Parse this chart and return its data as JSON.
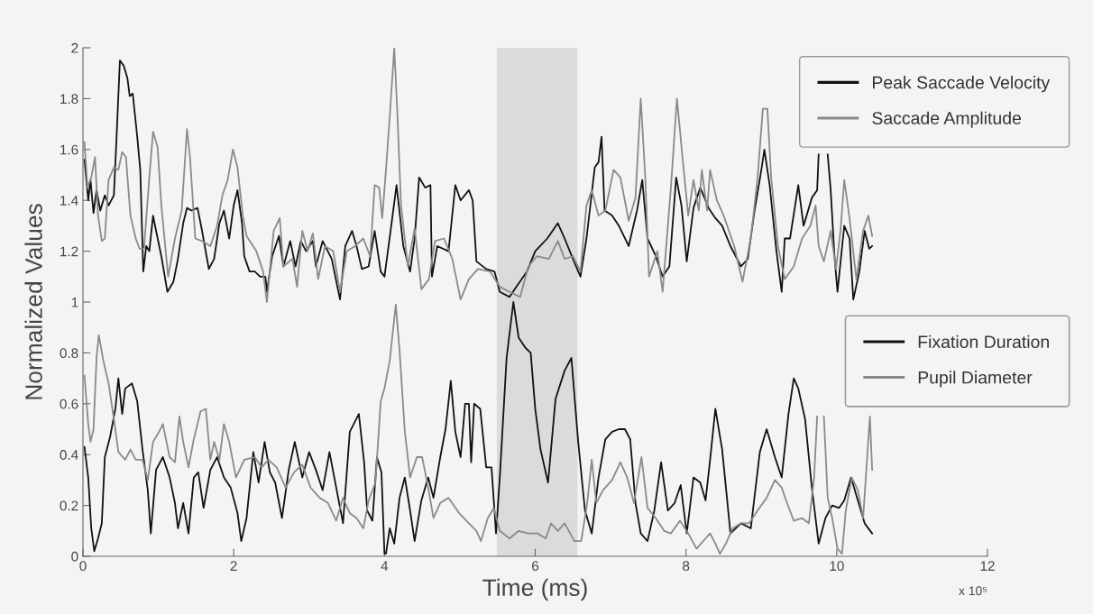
{
  "chart_data": {
    "type": "line",
    "xlabel": "Time (ms)",
    "ylabel": "Normalized Values",
    "annotations": [
      "x 10⁵"
    ],
    "xlim": [
      0,
      12
    ],
    "xticks": [
      0,
      2,
      4,
      6,
      8,
      10,
      12
    ],
    "ylim": [
      0,
      2
    ],
    "yticks": [
      0,
      0.2,
      0.4,
      0.6,
      0.8,
      1,
      1.2,
      1.4,
      1.6,
      1.8,
      2
    ],
    "grid": false,
    "legend": "top right",
    "line_style": "solid",
    "marker": "none",
    "bands": [
      {
        "axis": "x",
        "from": 5.49,
        "to": 6.56,
        "color": "#dadbdd"
      }
    ],
    "series": [
      {
        "name": "Peak Saccade Velocity",
        "color": "#111111",
        "x": [
          0.02,
          0.07,
          0.1,
          0.14,
          0.18,
          0.23,
          0.29,
          0.34,
          0.41,
          0.44,
          0.49,
          0.54,
          0.59,
          0.62,
          0.66,
          0.72,
          0.76,
          0.8,
          0.84,
          0.88,
          0.93,
          0.97,
          1.04,
          1.12,
          1.2,
          1.26,
          1.33,
          1.38,
          1.44,
          1.52,
          1.58,
          1.67,
          1.74,
          1.81,
          1.87,
          1.94,
          2.0,
          2.05,
          2.11,
          2.14,
          2.21,
          2.28,
          2.35,
          2.42,
          2.44,
          2.51,
          2.6,
          2.66,
          2.75,
          2.82,
          2.89,
          2.96,
          3.05,
          3.09,
          3.18,
          3.3,
          3.41,
          3.48,
          3.57,
          3.63,
          3.7,
          3.79,
          3.87,
          3.95,
          4.0,
          4.09,
          4.16,
          4.25,
          4.34,
          4.4,
          4.46,
          4.54,
          4.61,
          4.63,
          4.7,
          4.85,
          4.94,
          5.01,
          5.12,
          5.17,
          5.22,
          5.35,
          5.46,
          5.53,
          5.66,
          5.75,
          5.89,
          6.0,
          6.16,
          6.3,
          6.39,
          6.5,
          6.6,
          6.68,
          6.79,
          6.84,
          6.88,
          6.92,
          7.02,
          7.11,
          7.24,
          7.35,
          7.42,
          7.49,
          7.6,
          7.69,
          7.78,
          7.87,
          7.94,
          8.01,
          8.1,
          8.19,
          8.3,
          8.39,
          8.48,
          8.59,
          8.73,
          8.82,
          8.91,
          9.0,
          9.04,
          9.11,
          9.2,
          9.27,
          9.31,
          9.38,
          9.49,
          9.56,
          9.67,
          9.74,
          9.76,
          9.82,
          9.88,
          9.92,
          9.97,
          10.01,
          10.1,
          10.17,
          10.22,
          10.3,
          10.37,
          10.43,
          10.47
        ],
        "values": [
          1.56,
          1.4,
          1.48,
          1.35,
          1.44,
          1.36,
          1.42,
          1.38,
          1.42,
          1.61,
          1.95,
          1.93,
          1.88,
          1.81,
          1.82,
          1.65,
          1.52,
          1.12,
          1.22,
          1.2,
          1.34,
          1.28,
          1.18,
          1.04,
          1.08,
          1.17,
          1.31,
          1.37,
          1.36,
          1.37,
          1.28,
          1.13,
          1.17,
          1.31,
          1.36,
          1.25,
          1.38,
          1.44,
          1.31,
          1.18,
          1.12,
          1.12,
          1.1,
          1.1,
          1.04,
          1.18,
          1.26,
          1.14,
          1.24,
          1.14,
          1.24,
          1.2,
          1.24,
          1.14,
          1.24,
          1.17,
          1.01,
          1.22,
          1.28,
          1.22,
          1.13,
          1.14,
          1.28,
          1.12,
          1.1,
          1.3,
          1.46,
          1.22,
          1.12,
          1.25,
          1.49,
          1.45,
          1.46,
          1.1,
          1.22,
          1.2,
          1.46,
          1.4,
          1.44,
          1.4,
          1.16,
          1.13,
          1.12,
          1.04,
          1.02,
          1.06,
          1.12,
          1.2,
          1.25,
          1.31,
          1.25,
          1.17,
          1.1,
          1.25,
          1.53,
          1.55,
          1.65,
          1.36,
          1.34,
          1.3,
          1.22,
          1.36,
          1.48,
          1.25,
          1.18,
          1.1,
          1.14,
          1.49,
          1.38,
          1.16,
          1.37,
          1.45,
          1.37,
          1.33,
          1.3,
          1.22,
          1.14,
          1.17,
          1.36,
          1.52,
          1.6,
          1.46,
          1.2,
          1.04,
          1.25,
          1.25,
          1.46,
          1.3,
          1.41,
          1.44,
          1.58,
          null,
          1.58,
          1.44,
          1.18,
          1.04,
          1.3,
          1.25,
          1.01,
          1.12,
          1.28,
          1.21,
          1.22
        ]
      },
      {
        "name": "Saccade Amplitude",
        "color": "#8a8a8a",
        "x": [
          0.02,
          0.06,
          0.11,
          0.16,
          0.2,
          0.25,
          0.29,
          0.34,
          0.41,
          0.47,
          0.52,
          0.57,
          0.63,
          0.7,
          0.75,
          0.81,
          0.88,
          0.93,
          0.99,
          1.04,
          1.13,
          1.22,
          1.31,
          1.38,
          1.42,
          1.49,
          1.58,
          1.69,
          1.78,
          1.85,
          1.92,
          1.99,
          2.05,
          2.12,
          2.17,
          2.3,
          2.39,
          2.44,
          2.53,
          2.61,
          2.66,
          2.78,
          2.84,
          2.91,
          2.98,
          3.05,
          3.12,
          3.21,
          3.32,
          3.41,
          3.5,
          3.61,
          3.72,
          3.81,
          3.87,
          3.93,
          3.97,
          4.02,
          4.07,
          4.13,
          4.17,
          4.22,
          4.31,
          4.4,
          4.49,
          4.59,
          4.67,
          4.79,
          4.9,
          5.01,
          5.12,
          5.24,
          5.4,
          5.53,
          5.66,
          5.8,
          5.91,
          6.02,
          6.18,
          6.3,
          6.39,
          6.5,
          6.6,
          6.68,
          6.75,
          6.84,
          6.93,
          7.04,
          7.13,
          7.24,
          7.33,
          7.4,
          7.46,
          7.51,
          7.62,
          7.69,
          7.8,
          7.88,
          7.96,
          8.03,
          8.1,
          8.17,
          8.21,
          8.28,
          8.32,
          8.41,
          8.5,
          8.64,
          8.75,
          8.86,
          8.95,
          9.02,
          9.08,
          9.13,
          9.22,
          9.31,
          9.43,
          9.54,
          9.65,
          9.72,
          9.76,
          9.83,
          9.92,
          9.99,
          10.05,
          10.1,
          10.17,
          10.26,
          10.35,
          10.42,
          10.47
        ],
        "values": [
          1.63,
          1.45,
          1.49,
          1.57,
          1.34,
          1.24,
          1.25,
          1.48,
          1.53,
          1.52,
          1.59,
          1.57,
          1.34,
          1.25,
          1.21,
          1.21,
          1.49,
          1.67,
          1.61,
          1.38,
          1.1,
          1.25,
          1.36,
          1.68,
          1.57,
          1.25,
          1.24,
          1.22,
          1.3,
          1.42,
          1.48,
          1.6,
          1.53,
          1.34,
          1.26,
          1.2,
          1.12,
          1.0,
          1.28,
          1.33,
          1.14,
          1.17,
          1.06,
          1.28,
          1.2,
          1.27,
          1.09,
          1.22,
          1.2,
          1.04,
          1.2,
          1.22,
          1.25,
          1.18,
          1.46,
          1.45,
          1.33,
          1.52,
          1.73,
          2.0,
          1.75,
          1.38,
          1.14,
          1.29,
          1.05,
          1.09,
          1.24,
          1.25,
          1.17,
          1.01,
          1.09,
          1.13,
          1.12,
          1.06,
          1.04,
          1.02,
          1.14,
          1.18,
          1.17,
          1.24,
          1.17,
          1.18,
          1.12,
          1.38,
          1.44,
          1.34,
          1.36,
          1.52,
          1.49,
          1.32,
          1.41,
          1.8,
          1.49,
          1.1,
          1.2,
          1.04,
          1.45,
          1.8,
          1.55,
          1.34,
          1.48,
          1.36,
          1.52,
          1.36,
          1.52,
          1.4,
          1.34,
          1.22,
          1.08,
          1.25,
          1.49,
          1.76,
          1.76,
          1.49,
          1.22,
          1.09,
          1.14,
          1.25,
          1.3,
          1.38,
          1.22,
          1.16,
          1.28,
          1.13,
          1.28,
          1.48,
          1.33,
          1.09,
          1.28,
          1.34,
          1.26
        ]
      },
      {
        "name": "Fixation Duration",
        "color": "#111111",
        "x": [
          0.02,
          0.07,
          0.11,
          0.15,
          0.2,
          0.25,
          0.29,
          0.36,
          0.43,
          0.47,
          0.52,
          0.56,
          0.65,
          0.72,
          0.79,
          0.86,
          0.9,
          0.97,
          1.06,
          1.15,
          1.22,
          1.26,
          1.33,
          1.4,
          1.47,
          1.53,
          1.6,
          1.69,
          1.78,
          1.87,
          1.96,
          2.05,
          2.1,
          2.17,
          2.26,
          2.33,
          2.41,
          2.48,
          2.55,
          2.64,
          2.73,
          2.81,
          2.91,
          3.0,
          3.09,
          3.18,
          3.27,
          3.36,
          3.45,
          3.54,
          3.66,
          3.73,
          3.77,
          3.84,
          3.9,
          3.96,
          4.0,
          4.02,
          4.07,
          4.13,
          4.2,
          4.27,
          4.34,
          4.4,
          4.49,
          4.58,
          4.65,
          4.74,
          4.81,
          4.88,
          4.94,
          5.01,
          5.07,
          5.12,
          5.15,
          5.19,
          5.27,
          5.35,
          5.42,
          5.48,
          5.53,
          5.62,
          5.71,
          5.78,
          5.87,
          5.94,
          6.0,
          6.07,
          6.17,
          6.27,
          6.39,
          6.48,
          6.57,
          6.66,
          6.75,
          6.84,
          6.93,
          7.02,
          7.11,
          7.19,
          7.26,
          7.33,
          7.4,
          7.49,
          7.58,
          7.67,
          7.76,
          7.85,
          7.93,
          8.01,
          8.1,
          8.19,
          8.26,
          8.32,
          8.39,
          8.48,
          8.59,
          8.73,
          8.86,
          8.98,
          9.07,
          9.18,
          9.27,
          9.36,
          9.43,
          9.49,
          9.58,
          9.67,
          9.76,
          9.85,
          9.94,
          10.03,
          10.1,
          10.19,
          10.28,
          10.37,
          10.47
        ],
        "values": [
          0.43,
          0.31,
          0.11,
          0.02,
          0.07,
          0.13,
          0.39,
          0.47,
          0.58,
          0.7,
          0.56,
          0.66,
          0.68,
          0.61,
          0.42,
          0.26,
          0.09,
          0.34,
          0.39,
          0.31,
          0.21,
          0.11,
          0.21,
          0.09,
          0.31,
          0.33,
          0.19,
          0.34,
          0.39,
          0.31,
          0.27,
          0.17,
          0.06,
          0.15,
          0.41,
          0.29,
          0.45,
          0.33,
          0.29,
          0.15,
          0.34,
          0.45,
          0.31,
          0.41,
          0.34,
          0.26,
          0.41,
          0.27,
          0.13,
          0.49,
          0.56,
          0.37,
          0.18,
          0.14,
          0.39,
          0.33,
          0.01,
          0.01,
          0.11,
          0.05,
          0.23,
          0.31,
          0.18,
          0.06,
          0.22,
          0.31,
          0.23,
          0.39,
          0.5,
          0.69,
          0.49,
          0.39,
          0.6,
          0.6,
          0.37,
          0.6,
          0.58,
          0.35,
          0.35,
          0.09,
          0.31,
          0.78,
          1.0,
          0.86,
          0.82,
          0.8,
          0.58,
          0.42,
          0.29,
          0.62,
          0.73,
          0.78,
          0.45,
          0.18,
          0.09,
          0.31,
          0.46,
          0.49,
          0.5,
          0.5,
          0.46,
          0.21,
          0.09,
          0.06,
          0.18,
          0.37,
          0.18,
          0.21,
          0.28,
          0.09,
          0.31,
          0.29,
          0.22,
          0.38,
          0.58,
          0.42,
          0.09,
          0.13,
          0.11,
          0.41,
          0.5,
          0.39,
          0.31,
          0.56,
          0.7,
          0.66,
          0.54,
          0.27,
          0.05,
          0.15,
          0.2,
          0.19,
          0.22,
          0.31,
          0.22,
          0.13,
          0.09
        ]
      },
      {
        "name": "Pupil Diameter",
        "color": "#8a8a8a",
        "x": [
          0.02,
          0.07,
          0.1,
          0.14,
          0.18,
          0.21,
          0.27,
          0.34,
          0.41,
          0.47,
          0.56,
          0.63,
          0.7,
          0.79,
          0.86,
          0.93,
          1.01,
          1.06,
          1.15,
          1.22,
          1.28,
          1.33,
          1.4,
          1.47,
          1.56,
          1.63,
          1.69,
          1.74,
          1.81,
          1.87,
          1.94,
          2.03,
          2.14,
          2.28,
          2.37,
          2.46,
          2.57,
          2.69,
          2.8,
          2.91,
          3.02,
          3.14,
          3.25,
          3.36,
          3.45,
          3.54,
          3.63,
          3.72,
          3.79,
          3.88,
          3.95,
          4.0,
          4.07,
          4.15,
          4.2,
          4.27,
          4.34,
          4.43,
          4.5,
          4.58,
          4.65,
          4.74,
          4.85,
          4.99,
          5.12,
          5.22,
          5.28,
          5.37,
          5.45,
          5.53,
          5.66,
          5.78,
          5.91,
          6.03,
          6.14,
          6.21,
          6.3,
          6.39,
          6.52,
          6.61,
          6.69,
          6.75,
          6.81,
          6.9,
          7.02,
          7.13,
          7.22,
          7.31,
          7.41,
          7.49,
          7.6,
          7.71,
          7.8,
          7.92,
          8.03,
          8.14,
          8.26,
          8.32,
          8.39,
          8.45,
          8.53,
          8.62,
          8.73,
          8.84,
          8.95,
          9.07,
          9.18,
          9.27,
          9.34,
          9.43,
          9.54,
          9.63,
          9.7,
          9.74,
          9.79,
          9.83,
          9.88,
          9.94,
          10.01,
          10.07,
          10.12,
          10.2,
          10.28,
          10.35,
          10.44,
          10.47
        ],
        "values": [
          0.71,
          0.52,
          0.45,
          0.5,
          0.78,
          0.87,
          0.77,
          0.68,
          0.54,
          0.41,
          0.38,
          0.42,
          0.38,
          0.38,
          0.3,
          0.45,
          0.49,
          0.52,
          0.39,
          0.37,
          0.55,
          0.45,
          0.35,
          0.46,
          0.57,
          0.58,
          0.38,
          0.45,
          0.38,
          0.52,
          0.45,
          0.31,
          0.38,
          0.39,
          0.35,
          0.38,
          0.35,
          0.27,
          0.33,
          0.36,
          0.27,
          0.23,
          0.21,
          0.14,
          0.23,
          0.17,
          0.15,
          0.11,
          0.22,
          0.29,
          0.61,
          0.66,
          0.77,
          0.99,
          0.81,
          0.49,
          0.31,
          0.39,
          0.39,
          0.27,
          0.15,
          0.21,
          0.23,
          0.17,
          0.13,
          0.1,
          0.06,
          0.15,
          0.19,
          0.1,
          0.07,
          0.1,
          0.09,
          0.09,
          0.07,
          0.13,
          0.1,
          0.13,
          0.06,
          0.06,
          0.21,
          0.38,
          0.21,
          0.26,
          0.3,
          0.37,
          0.31,
          0.21,
          0.39,
          0.19,
          0.15,
          0.1,
          0.09,
          0.14,
          0.09,
          0.03,
          0.07,
          0.09,
          0.05,
          0.01,
          0.05,
          0.11,
          0.13,
          0.13,
          0.18,
          0.23,
          0.3,
          0.27,
          0.21,
          0.14,
          0.15,
          0.13,
          0.31,
          0.55,
          null,
          0.55,
          0.23,
          0.15,
          0.03,
          0.01,
          0.18,
          0.31,
          0.26,
          0.15,
          0.55,
          0.34
        ]
      }
    ]
  }
}
